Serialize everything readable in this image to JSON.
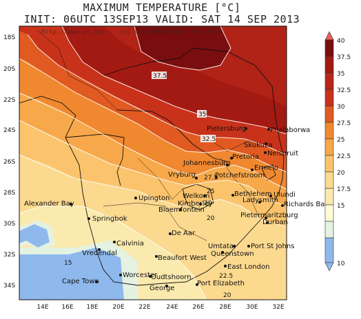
{
  "title_line1": "MAXIMUM TEMPERATURE [°C]",
  "title_line2": "INIT: 06UTC 13SEP13   VALID:  SAT 14 SEP 2013",
  "watermark": "http://www.yr.no/...     (c) CUSTOMWEATHER, Inc 2013",
  "colorbar": {
    "levels": [
      "40",
      "37.5",
      "35",
      "32.5",
      "30",
      "27.5",
      "25",
      "22.5",
      "20",
      "17.5",
      "15",
      "10"
    ],
    "colors": [
      "#e8605a",
      "#7a0e0e",
      "#a31a12",
      "#c8321b",
      "#e05a21",
      "#f0882f",
      "#f7a84a",
      "#fbc46c",
      "#fbd98f",
      "#fbeaae",
      "#fffbd6",
      "#e4f2e2",
      "#8fb8ec"
    ]
  },
  "axes": {
    "lat_labels": [
      "18S",
      "20S",
      "22S",
      "24S",
      "26S",
      "28S",
      "30S",
      "32S",
      "34S"
    ],
    "lon_labels": [
      "14E",
      "16E",
      "18E",
      "20E",
      "22E",
      "24E",
      "26E",
      "28E",
      "30E",
      "32E"
    ]
  },
  "contour_labels": [
    "37.5",
    "35",
    "32.5",
    "27.5",
    "25",
    "20",
    "15",
    "22.5",
    "20",
    "20"
  ],
  "cities": [
    {
      "name": "Phalaborwa"
    },
    {
      "name": "Pietersburg"
    },
    {
      "name": "Skukuza"
    },
    {
      "name": "Nelspruit"
    },
    {
      "name": "Pretoria"
    },
    {
      "name": "Johannesburg"
    },
    {
      "name": "Ermelo"
    },
    {
      "name": "Potchefstroom"
    },
    {
      "name": "Vryburg"
    },
    {
      "name": "Ulundi"
    },
    {
      "name": "Bethlehem"
    },
    {
      "name": "Ladysmith"
    },
    {
      "name": "Richards Bay"
    },
    {
      "name": "Welkom"
    },
    {
      "name": "Kimberley"
    },
    {
      "name": "Bloemfontein"
    },
    {
      "name": "Upington"
    },
    {
      "name": "Alexander Bay"
    },
    {
      "name": "Springbok"
    },
    {
      "name": "Pietermaritzburg"
    },
    {
      "name": "Durban"
    },
    {
      "name": "De Aar"
    },
    {
      "name": "Calvinia"
    },
    {
      "name": "Vredendal"
    },
    {
      "name": "Umtata"
    },
    {
      "name": "Port St Johns"
    },
    {
      "name": "Queenstown"
    },
    {
      "name": "Beaufort West"
    },
    {
      "name": "East London"
    },
    {
      "name": "Worcester"
    },
    {
      "name": "Oudtshoorn"
    },
    {
      "name": "Cape Town"
    },
    {
      "name": "George"
    },
    {
      "name": "Port Elizabeth"
    }
  ]
}
